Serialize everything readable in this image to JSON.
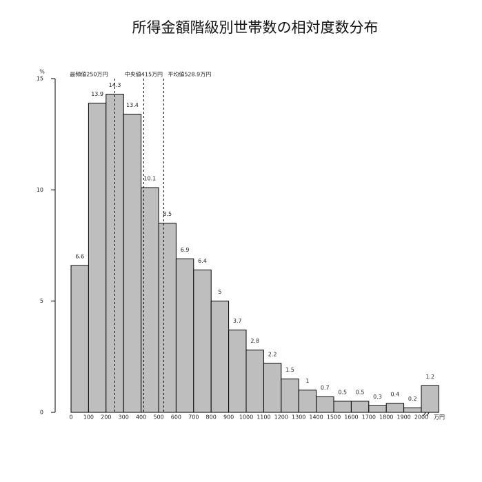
{
  "chart_data": {
    "type": "histogram",
    "title": "所得金額階級別世帯数の相対度数分布",
    "y_unit": "%",
    "x_unit": "万円",
    "bins": [
      0,
      100,
      200,
      300,
      400,
      500,
      600,
      700,
      800,
      900,
      1000,
      1100,
      1200,
      1300,
      1400,
      1500,
      1600,
      1700,
      1800,
      1900,
      2000,
      2100
    ],
    "values": [
      6.6,
      13.9,
      14.3,
      13.4,
      10.1,
      8.5,
      6.9,
      6.4,
      5,
      3.7,
      2.8,
      2.2,
      1.5,
      1,
      0.7,
      0.5,
      0.5,
      0.3,
      0.4,
      0.2,
      1.2
    ],
    "color": "#bebebe",
    "xlim": [
      0,
      2100
    ],
    "xticks": [
      0,
      100,
      200,
      300,
      400,
      500,
      600,
      700,
      800,
      900,
      1000,
      1100,
      1200,
      1300,
      1400,
      1500,
      1600,
      1700,
      1800,
      1900,
      2000
    ],
    "ylim": [
      0,
      15
    ],
    "yticks": [
      0,
      5,
      10,
      15
    ],
    "annotations": [
      {
        "label": "最頻値250万円",
        "x": 250
      },
      {
        "label": "中央値415万円",
        "x": 415
      },
      {
        "label": "平均値528.9万円",
        "x": 528.9
      }
    ]
  }
}
